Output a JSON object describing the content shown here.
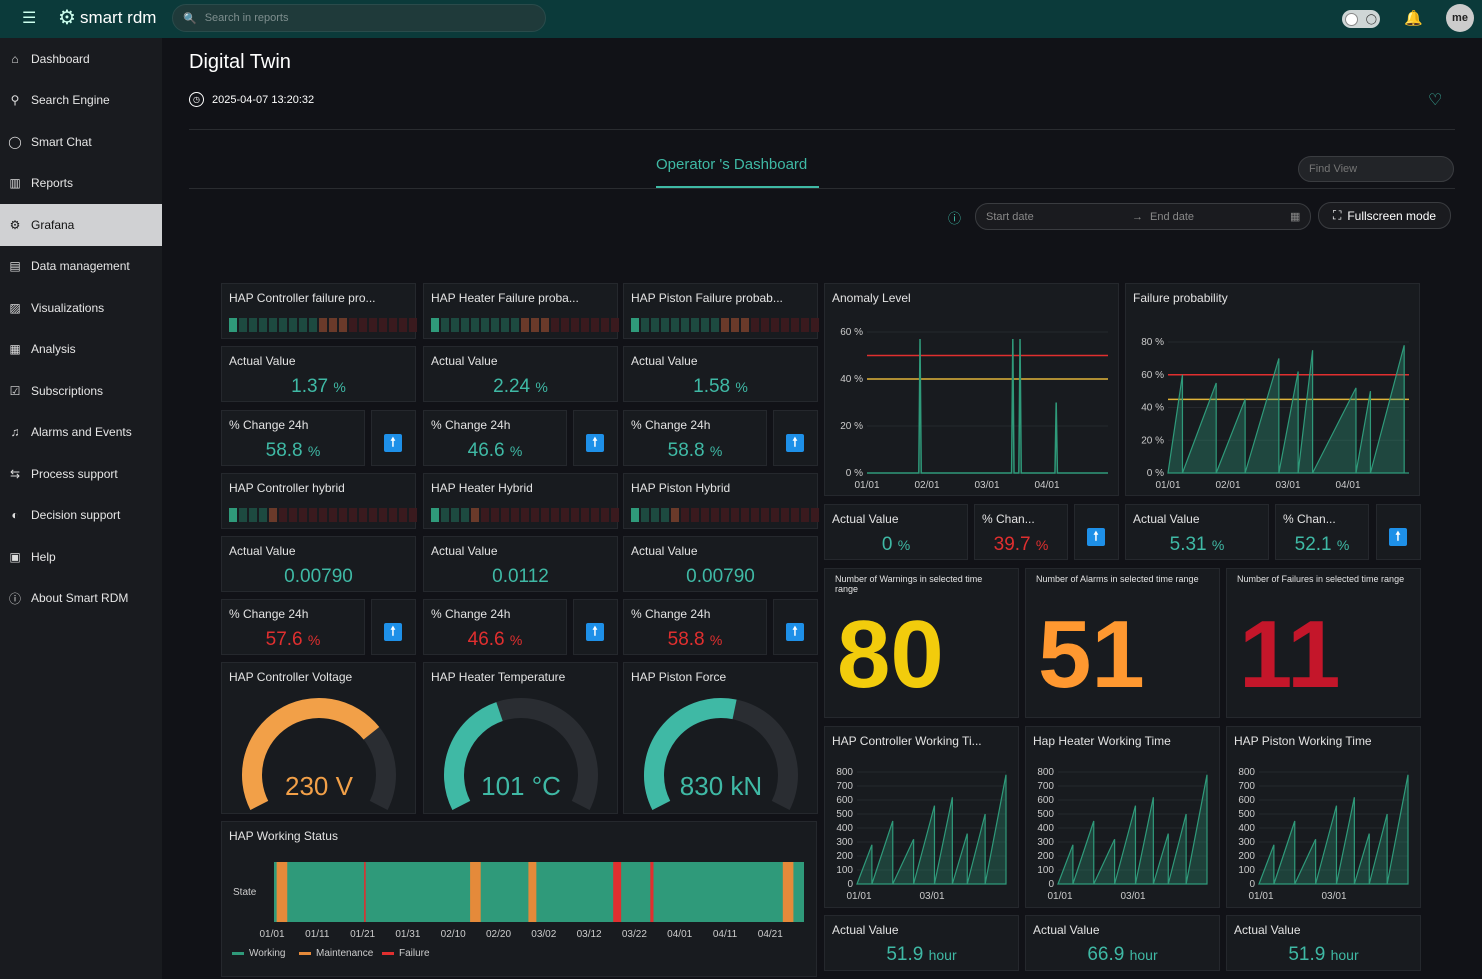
{
  "topbar": {
    "brand": "smart rdm",
    "search_placeholder": "Search in reports",
    "avatar": "me"
  },
  "sidebar": {
    "items": [
      {
        "label": "Dashboard",
        "icon": "home-icon"
      },
      {
        "label": "Search Engine",
        "icon": "search-icon"
      },
      {
        "label": "Smart Chat",
        "icon": "chat-icon"
      },
      {
        "label": "Reports",
        "icon": "bar-chart-icon"
      },
      {
        "label": "Grafana",
        "icon": "grafana-icon",
        "active": true
      },
      {
        "label": "Data management",
        "icon": "database-icon"
      },
      {
        "label": "Visualizations",
        "icon": "image-icon"
      },
      {
        "label": "Analysis",
        "icon": "analysis-icon"
      },
      {
        "label": "Subscriptions",
        "icon": "check-box-icon"
      },
      {
        "label": "Alarms and Events",
        "icon": "bell-icon"
      },
      {
        "label": "Process support",
        "icon": "arrows-icon"
      },
      {
        "label": "Decision support",
        "icon": "decision-icon"
      },
      {
        "label": "Help",
        "icon": "help-icon"
      },
      {
        "label": "About Smart RDM",
        "icon": "info-icon"
      }
    ]
  },
  "page": {
    "title": "Digital Twin",
    "timestamp": "2025-04-07 13:20:32",
    "tab": "Operator 's Dashboard",
    "find_view_placeholder": "Find View",
    "start_date_placeholder": "Start date",
    "end_date_placeholder": "End date",
    "fullscreen_label": "Fullscreen mode"
  },
  "columns": [
    {
      "failure_title": "HAP Controller failure pro...",
      "actual_label": "Actual Value",
      "actual": "1.37",
      "unit": "%",
      "change_label": "% Change 24h",
      "change": "58.8",
      "change_color": "green",
      "hybrid_title": "HAP Controller hybrid",
      "hybrid_actual": "0.00790",
      "hybrid_change": "57.6",
      "hybrid_change_color": "red",
      "gauge_title": "HAP Controller Voltage",
      "gauge_value": "230 V",
      "gauge_fraction": 0.72,
      "gauge_color": "#f2a048"
    },
    {
      "failure_title": "HAP Heater Failure proba...",
      "actual_label": "Actual Value",
      "actual": "2.24",
      "unit": "%",
      "change_label": "% Change 24h",
      "change": "46.6",
      "change_color": "green",
      "hybrid_title": "HAP Heater Hybrid",
      "hybrid_actual": "0.0112",
      "hybrid_change": "46.6",
      "hybrid_change_color": "red",
      "gauge_title": "HAP Heater Temperature",
      "gauge_value": "101 °C",
      "gauge_fraction": 0.42,
      "gauge_color": "#3fb9a5"
    },
    {
      "failure_title": "HAP Piston Failure probab...",
      "actual_label": "Actual Value",
      "actual": "1.58",
      "unit": "%",
      "change_label": "% Change 24h",
      "change": "58.8",
      "change_color": "green",
      "hybrid_title": "HAP Piston Hybrid",
      "hybrid_actual": "0.00790",
      "hybrid_change": "58.8",
      "hybrid_change_color": "red",
      "gauge_title": "HAP Piston Force",
      "gauge_value": "830 kN",
      "gauge_fraction": 0.55,
      "gauge_color": "#3fb9a5"
    }
  ],
  "anomaly": {
    "title": "Anomaly Level",
    "actual_label": "Actual Value",
    "actual": "0",
    "unit": "%",
    "change_label": "% Chan...",
    "change": "39.7",
    "change_color": "red"
  },
  "failure_prob": {
    "title": "Failure probability",
    "actual_label": "Actual Value",
    "actual": "5.31",
    "unit": "%",
    "change_label": "% Chan...",
    "change": "52.1",
    "change_color": "green"
  },
  "counts": [
    {
      "label": "Number of Warnings in selected time range",
      "value": "80",
      "color": "#f2cc0c"
    },
    {
      "label": "Number of Alarms in selected time range",
      "value": "51",
      "color": "#ff9830"
    },
    {
      "label": "Number of Failures in selected time range",
      "value": "11",
      "color": "#c4162a"
    }
  ],
  "working_times": [
    {
      "title": "HAP Controller Working Ti...",
      "actual_label": "Actual Value",
      "actual": "51.9",
      "unit": "hour"
    },
    {
      "title": "Hap Heater Working Time",
      "actual_label": "Actual Value",
      "actual": "66.9",
      "unit": "hour"
    },
    {
      "title": "HAP Piston Working Time",
      "actual_label": "Actual Value",
      "actual": "51.9",
      "unit": "hour"
    }
  ],
  "working_status": {
    "title": "HAP Working Status",
    "row_label": "State",
    "ticks": [
      "01/01",
      "01/11",
      "01/21",
      "01/31",
      "02/10",
      "02/20",
      "03/02",
      "03/12",
      "03/22",
      "04/01",
      "04/11",
      "04/21"
    ],
    "legend": [
      {
        "label": "Working",
        "color": "#2f9a7a"
      },
      {
        "label": "Maintenance",
        "color": "#e58a3a"
      },
      {
        "label": "Failure",
        "color": "#e02f2f"
      }
    ]
  },
  "chart_data": [
    {
      "type": "line",
      "title": "Anomaly Level",
      "x_ticks": [
        "01/01",
        "02/01",
        "03/01",
        "04/01"
      ],
      "y_ticks": [
        "0 %",
        "20 %",
        "40 %",
        "60 %"
      ],
      "ylim": [
        0,
        60
      ],
      "thresholds": [
        {
          "value": 50,
          "color": "#e02f2f"
        },
        {
          "value": 40,
          "color": "#e0b43a"
        }
      ]
    },
    {
      "type": "area",
      "title": "Failure probability",
      "x_ticks": [
        "01/01",
        "02/01",
        "03/01",
        "04/01"
      ],
      "y_ticks": [
        "0 %",
        "20 %",
        "40 %",
        "60 %",
        "80 %"
      ],
      "ylim": [
        0,
        80
      ],
      "thresholds": [
        {
          "value": 60,
          "color": "#e02f2f"
        },
        {
          "value": 45,
          "color": "#e0b43a"
        }
      ]
    },
    {
      "type": "area",
      "title": "HAP Controller Working Ti...",
      "x_ticks": [
        "01/01",
        "03/01"
      ],
      "y_ticks": [
        "0",
        "100",
        "200",
        "300",
        "400",
        "500",
        "600",
        "700",
        "800"
      ],
      "ylim": [
        0,
        800
      ]
    },
    {
      "type": "area",
      "title": "Hap Heater Working Time",
      "x_ticks": [
        "01/01",
        "03/01"
      ],
      "y_ticks": [
        "0",
        "100",
        "200",
        "300",
        "400",
        "500",
        "600",
        "700",
        "800"
      ],
      "ylim": [
        0,
        800
      ]
    },
    {
      "type": "area",
      "title": "HAP Piston Working Time",
      "x_ticks": [
        "01/01",
        "03/01"
      ],
      "y_ticks": [
        "0",
        "100",
        "200",
        "300",
        "400",
        "500",
        "600",
        "700",
        "800"
      ],
      "ylim": [
        0,
        800
      ]
    }
  ]
}
